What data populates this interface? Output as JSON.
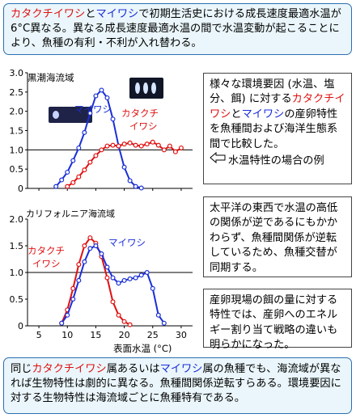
{
  "header": {
    "p1": "カタクチイワシ",
    "p2": "と",
    "p3": "マイワシ",
    "p4": "で初期生活史における成長速度最適水温が6°C異なる。異なる成長速度最適水温の間で水温変動が起こることにより、魚種の有利・不利が入れ替わる。"
  },
  "side_notes": {
    "n1a": "様々な環境要因 (水温、塩分、餌) に対する",
    "n1b": "カタクチイワシ",
    "n1c": "と",
    "n1d": "マイワシ",
    "n1e": "の産卵特性を魚種間および海洋生態系間で比較した。",
    "n1f": "水温特性の場合の例",
    "n2": "太平洋の東西で水温の高低の関係が逆であるにもかかわらず、魚種間関係が逆転しているため、魚種交替が同期する。",
    "n3": "産卵現場の餌の量に対する特性では、産卵へのエネルギー割り当て戦略の違いも明らかになった。"
  },
  "footer": {
    "f1": "同じ",
    "f2": "カタクチイワシ",
    "f3": "属あるいは",
    "f4": "マイワシ",
    "f5": "属の魚種でも、海流域が異なれば生物特性は劇的に異なる。魚種間関係逆転すらある。環境要因に対する生物特性は海流域ごとに魚種特有である。"
  },
  "colors": {
    "anchovy": "#e01010",
    "sardine": "#1a2fd8",
    "box_bg": "#eaf6fb",
    "box_border": "#2b6fb0"
  },
  "chart_data": [
    {
      "type": "line",
      "title": "黒潮海流域",
      "xlabel": "",
      "ylim": [
        0,
        3.0
      ],
      "xlim": [
        3,
        32
      ],
      "yticks": [
        "0",
        "0.5",
        "1.0",
        "1.5",
        "2.0",
        "2.5",
        "3.0"
      ],
      "reference_line_y": 1.0,
      "series": [
        {
          "name": "マイワシ",
          "color": "#1a2fd8",
          "x": [
            8,
            9,
            10,
            11,
            12,
            13,
            14,
            15,
            16,
            17,
            18,
            19,
            20,
            21,
            22,
            23
          ],
          "y": [
            0.05,
            0.22,
            0.42,
            0.72,
            1.05,
            1.45,
            1.95,
            2.4,
            2.55,
            2.35,
            1.8,
            1.1,
            0.55,
            0.2,
            0.05,
            0.01
          ]
        },
        {
          "name": "カタクチイワシ",
          "color": "#e01010",
          "x": [
            10,
            11,
            12,
            13,
            14,
            15,
            16,
            17,
            18,
            19,
            20,
            21,
            22,
            23,
            24,
            25,
            26,
            27,
            28,
            29,
            30
          ],
          "y": [
            0.05,
            0.15,
            0.3,
            0.48,
            0.68,
            0.85,
            1.0,
            1.1,
            1.12,
            1.1,
            1.15,
            1.18,
            1.12,
            1.1,
            1.15,
            1.2,
            1.12,
            1.0,
            1.1,
            0.95,
            1.05
          ]
        }
      ]
    },
    {
      "type": "line",
      "title": "カリフォルニア海流域",
      "xlabel": "表面水温 (°C)",
      "ylim": [
        0,
        2.0
      ],
      "xlim": [
        3,
        32
      ],
      "xticks": [
        5,
        10,
        15,
        20,
        25,
        30
      ],
      "yticks": [
        "0",
        "0.5",
        "1.0",
        "1.5",
        "2.0"
      ],
      "reference_line_y": 1.0,
      "series": [
        {
          "name": "カタクチイワシ",
          "color": "#e01010",
          "x": [
            9,
            10,
            11,
            12,
            13,
            14,
            15,
            16,
            17,
            18,
            19,
            20,
            21
          ],
          "y": [
            0.05,
            0.3,
            0.7,
            1.15,
            1.5,
            1.65,
            1.55,
            1.3,
            0.9,
            0.45,
            0.2,
            0.08,
            0.02
          ]
        },
        {
          "name": "マイワシ",
          "color": "#1a2fd8",
          "x": [
            9,
            10,
            11,
            12,
            13,
            14,
            15,
            16,
            17,
            18,
            19,
            20,
            21,
            22,
            23,
            24,
            25,
            26,
            27
          ],
          "y": [
            0.05,
            0.2,
            0.5,
            0.85,
            1.2,
            1.45,
            1.5,
            1.35,
            1.1,
            0.9,
            0.8,
            0.85,
            0.88,
            0.9,
            0.95,
            1.0,
            0.7,
            0.2,
            0.05
          ]
        }
      ]
    }
  ],
  "chart_labels": {
    "c1_sardine": "マイワシ",
    "c1_anchovy_a": "カタクチ",
    "c1_anchovy_b": "イワシ",
    "c2_anchovy_a": "カタクチ",
    "c2_anchovy_b": "イワシ",
    "c2_sardine": "マイワシ"
  }
}
